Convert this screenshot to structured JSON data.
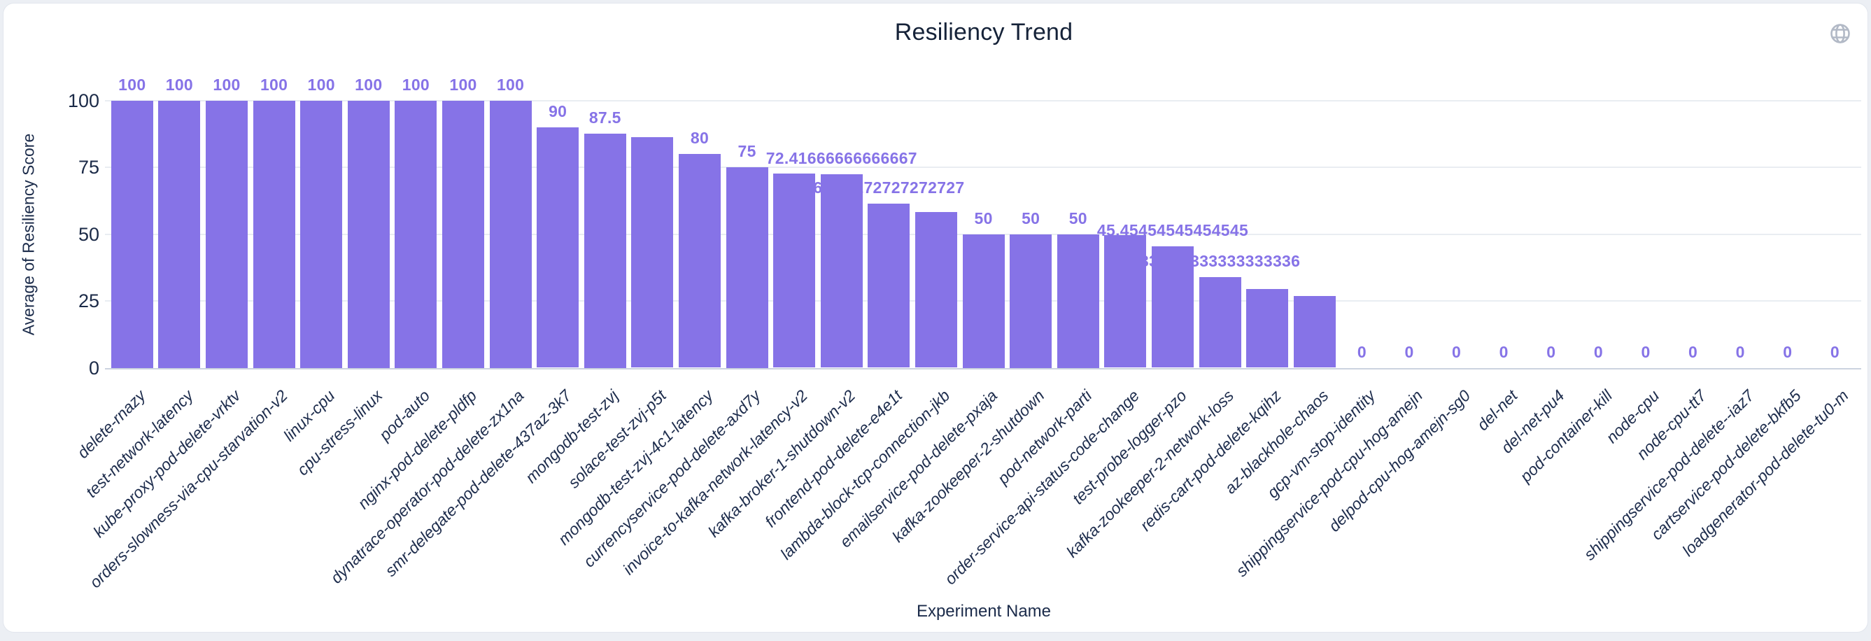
{
  "header": {
    "title": "Resiliency Trend",
    "globe_icon": "globe"
  },
  "colors": {
    "bar": "#8673E7",
    "value_label": "#8673E7",
    "title_text": "#152238",
    "axis_text": "#1b2a47",
    "gridline": "#e9edf2",
    "baseline": "#ccd3df",
    "card_background": "#ffffff",
    "page_background": "#eceff4",
    "globe_icon": "#b2b9c6"
  },
  "chart_data": {
    "type": "bar",
    "title": "Resiliency Trend",
    "xlabel": "Experiment Name",
    "ylabel": "Average of Resiliency Score",
    "ylim": [
      0,
      100
    ],
    "yticks": [
      0,
      25,
      50,
      75,
      100
    ],
    "grid": true,
    "legend": "none",
    "categories": [
      "delete-rnazy",
      "test-network-latency",
      "kube-proxy-pod-delete-vrktv",
      "orders-slowness-via-cpu-starvation-v2",
      "linux-cpu",
      "cpu-stress-linux",
      "pod-auto",
      "nginx-pod-delete-pldfp",
      "dynatrace-operator-pod-delete-zx1na",
      "smr-delegate-pod-delete-437az-3k7",
      "mongodb-test-zvj",
      "solace-test-zvj-p5t",
      "mongodb-test-zvj-4c1-latency",
      "currencyservice-pod-delete-axd7y",
      "invoice-to-kafka-network-latency-v2",
      "kafka-broker-1-shutdown-v2",
      "frontend-pod-delete-e4e1t",
      "lambda-block-tcp-connection-jkb",
      "emailservice-pod-delete-pxaja",
      "kafka-zookeeper-2-shutdown",
      "pod-network-parti",
      "order-service-api-status-code-change",
      "test-probe-logger-pzo",
      "kafka-zookeeper-2-network-loss",
      "redis-cart-pod-delete-kqihz",
      "az-blackhole-chaos",
      "gcp-vm-stop-identity",
      "shippingservice-pod-cpu-hog-amejn",
      "delpod-cpu-hog-amejn-sg0",
      "del-net",
      "del-net-pu4",
      "pod-container-kill",
      "node-cpu",
      "node-cpu-tt7",
      "shippingservice-pod-delete--iaz7",
      "cartservice-pod-delete-bkfb5",
      "loadgenerator-pod-delete-tu0-m"
    ],
    "values": [
      100,
      100,
      100,
      100,
      100,
      100,
      100,
      100,
      100,
      90,
      87.5,
      86.36363636363636,
      80,
      75,
      72.72727272727273,
      72.41666666666667,
      61.27272727272727,
      58.333333333333336,
      50,
      50,
      50,
      49.5,
      45.45454545454545,
      33.833333333333336,
      29.5,
      26.9,
      0,
      0,
      0,
      0,
      0,
      0,
      0,
      0,
      0,
      0,
      0
    ],
    "bar_labels": [
      "100",
      "100",
      "100",
      "100",
      "100",
      "100",
      "100",
      "100",
      "100",
      "90",
      "87.5",
      null,
      "80",
      "75",
      null,
      "72.41666666666667",
      "61.27272727272727",
      null,
      "50",
      "50",
      "50",
      null,
      "45.45454545454545",
      "33.833333333333336",
      null,
      null,
      "0",
      "0",
      "0",
      "0",
      "0",
      "0",
      "0",
      "0",
      "0",
      "0",
      "0"
    ]
  }
}
